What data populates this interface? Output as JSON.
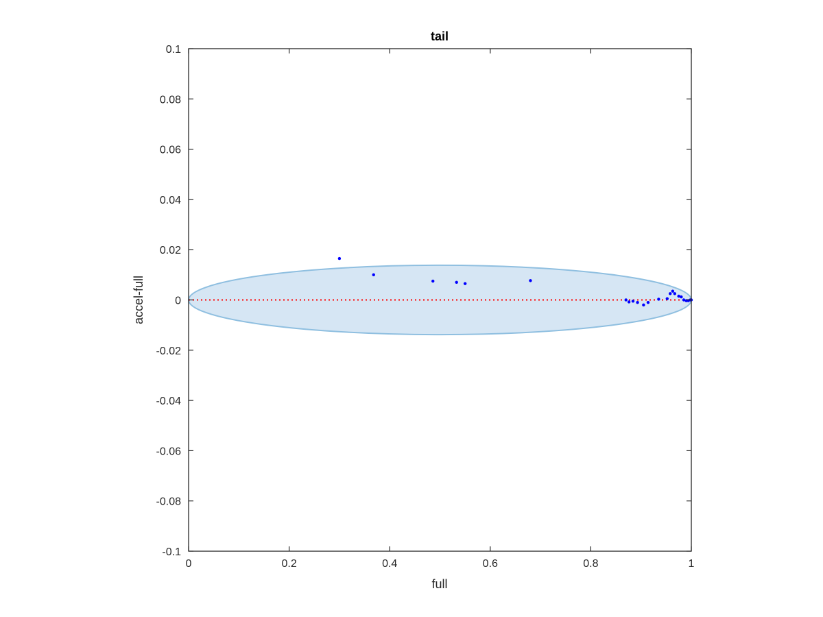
{
  "chart_data": {
    "type": "scatter",
    "title": "tail",
    "xlabel": "full",
    "ylabel": "accel-full",
    "xlim": [
      0,
      1
    ],
    "ylim": [
      -0.1,
      0.1
    ],
    "xticks": [
      0,
      0.2,
      0.4,
      0.6,
      0.8,
      1
    ],
    "xtick_labels": [
      "0",
      "0.2",
      "0.4",
      "0.6",
      "0.8",
      "1"
    ],
    "yticks": [
      -0.1,
      -0.08,
      -0.06,
      -0.04,
      -0.02,
      0,
      0.02,
      0.04,
      0.06,
      0.08,
      0.1
    ],
    "ytick_labels": [
      "-0.1",
      "-0.08",
      "-0.06",
      "-0.04",
      "-0.02",
      "0",
      "0.02",
      "0.04",
      "0.06",
      "0.08",
      "0.1"
    ],
    "grid": false,
    "reference_line": {
      "y": 0,
      "style": "dotted",
      "color": "#ff0000"
    },
    "ellipse": {
      "center": [
        0.5,
        0
      ],
      "semi_axes": [
        0.5,
        0.0138
      ],
      "fill": "#d6e6f4",
      "stroke": "#8fbfe0"
    },
    "points": [
      [
        0.3,
        0.0165
      ],
      [
        0.368,
        0.01
      ],
      [
        0.486,
        0.0075
      ],
      [
        0.533,
        0.007
      ],
      [
        0.55,
        0.0065
      ],
      [
        0.68,
        0.0077
      ],
      [
        0.87,
        0.0
      ],
      [
        0.876,
        -0.0008
      ],
      [
        0.884,
        -0.0005
      ],
      [
        0.893,
        -0.001
      ],
      [
        0.905,
        -0.002
      ],
      [
        0.914,
        -0.001
      ],
      [
        0.935,
        0.0003
      ],
      [
        0.952,
        0.0005
      ],
      [
        0.958,
        0.0025
      ],
      [
        0.963,
        0.0035
      ],
      [
        0.967,
        0.0025
      ],
      [
        0.975,
        0.0015
      ],
      [
        0.98,
        0.0012
      ],
      [
        0.985,
        0.0
      ],
      [
        0.99,
        -0.0003
      ],
      [
        0.994,
        -0.0003
      ],
      [
        0.998,
        0.0
      ],
      [
        1.0,
        0.0
      ]
    ],
    "point_color": "#0000ff"
  }
}
